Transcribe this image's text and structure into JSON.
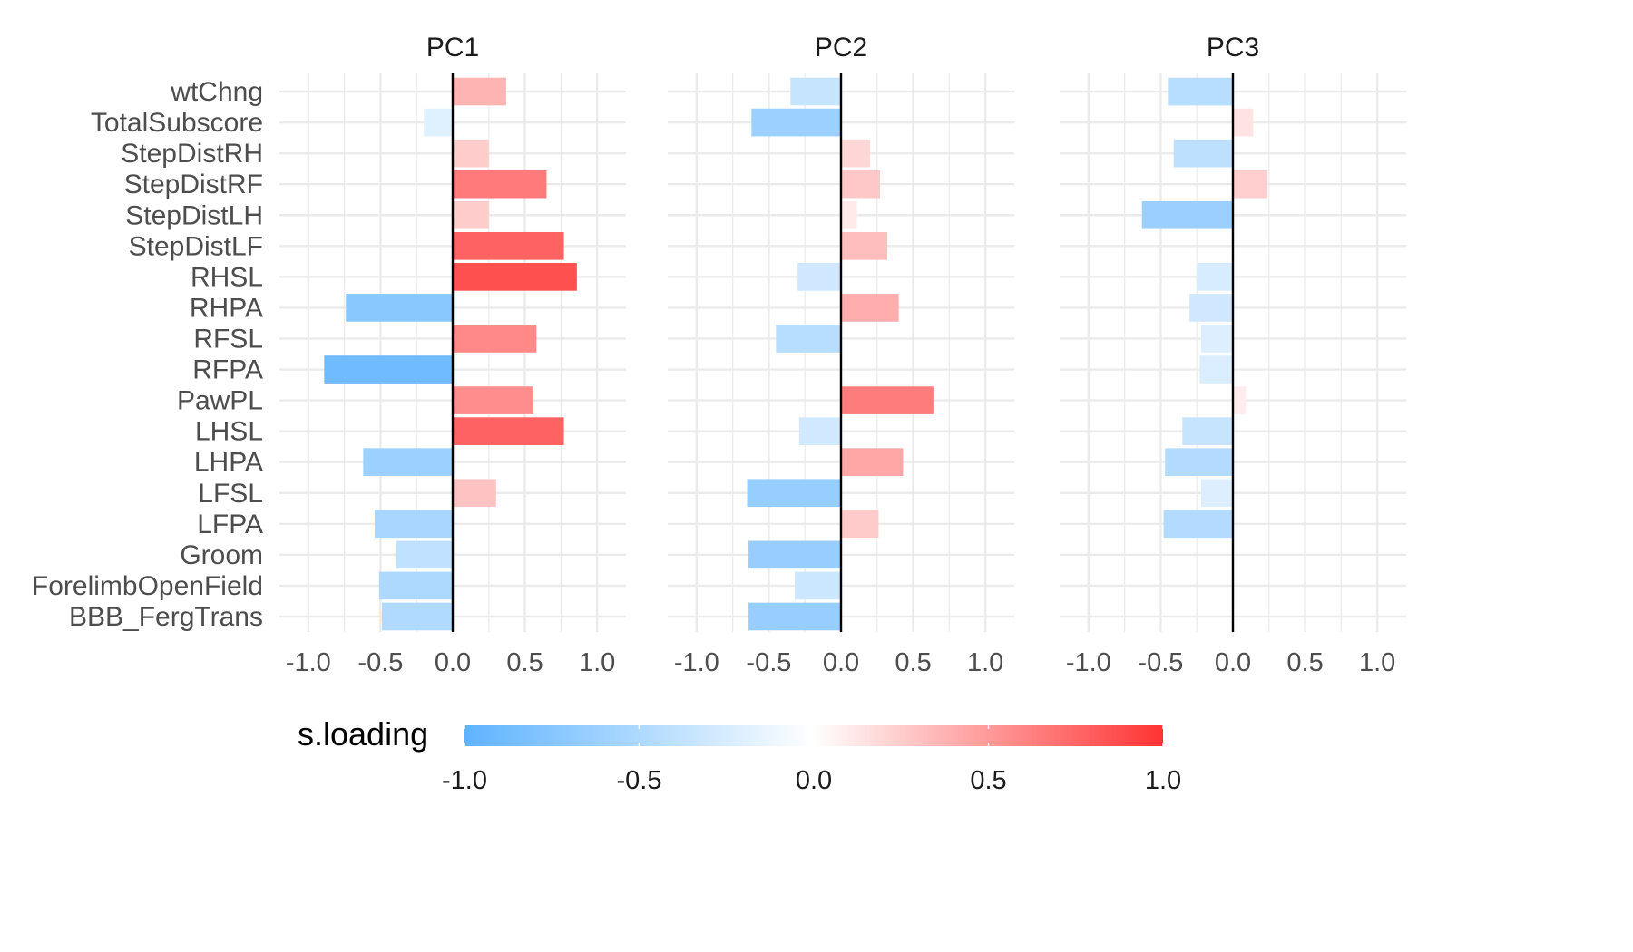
{
  "chart_data": {
    "type": "bar",
    "orientation": "horizontal",
    "facets": [
      "PC1",
      "PC2",
      "PC3"
    ],
    "categories": [
      "wtChng",
      "TotalSubscore",
      "StepDistRH",
      "StepDistRF",
      "StepDistLH",
      "StepDistLF",
      "RHSL",
      "RHPA",
      "RFSL",
      "RFPA",
      "PawPL",
      "LHSL",
      "LHPA",
      "LFSL",
      "LFPA",
      "Groom",
      "ForelimbOpenField",
      "BBB_FergTrans"
    ],
    "series": [
      {
        "name": "PC1",
        "values": [
          0.37,
          -0.2,
          0.25,
          0.65,
          0.25,
          0.77,
          0.86,
          -0.74,
          0.58,
          -0.89,
          0.56,
          0.77,
          -0.62,
          0.3,
          -0.54,
          -0.39,
          -0.51,
          -0.49
        ]
      },
      {
        "name": "PC2",
        "values": [
          -0.35,
          -0.62,
          0.2,
          0.27,
          0.11,
          0.32,
          -0.3,
          0.4,
          -0.45,
          0.0,
          0.64,
          -0.29,
          0.43,
          -0.65,
          0.26,
          -0.64,
          -0.32,
          -0.64
        ]
      },
      {
        "name": "PC3",
        "values": [
          -0.45,
          0.14,
          -0.41,
          0.24,
          -0.63,
          0.0,
          -0.25,
          -0.3,
          -0.22,
          -0.23,
          0.09,
          -0.35,
          -0.47,
          -0.22,
          -0.48,
          0.0,
          0.0,
          0.0
        ]
      }
    ],
    "xlim": [
      -1.2,
      1.2
    ],
    "x_ticks": [
      "-1.0",
      "-0.5",
      "0.0",
      "0.5",
      "1.0"
    ],
    "fill": {
      "title": "s.loading",
      "low": "#5eb3ff",
      "mid": "#ffffff",
      "high": "#ff3333",
      "limits": [
        -1,
        1
      ],
      "ticks": [
        "-1.0",
        "-0.5",
        "0.0",
        "0.5",
        "1.0"
      ]
    },
    "grid": true,
    "legend_position": "bottom"
  }
}
